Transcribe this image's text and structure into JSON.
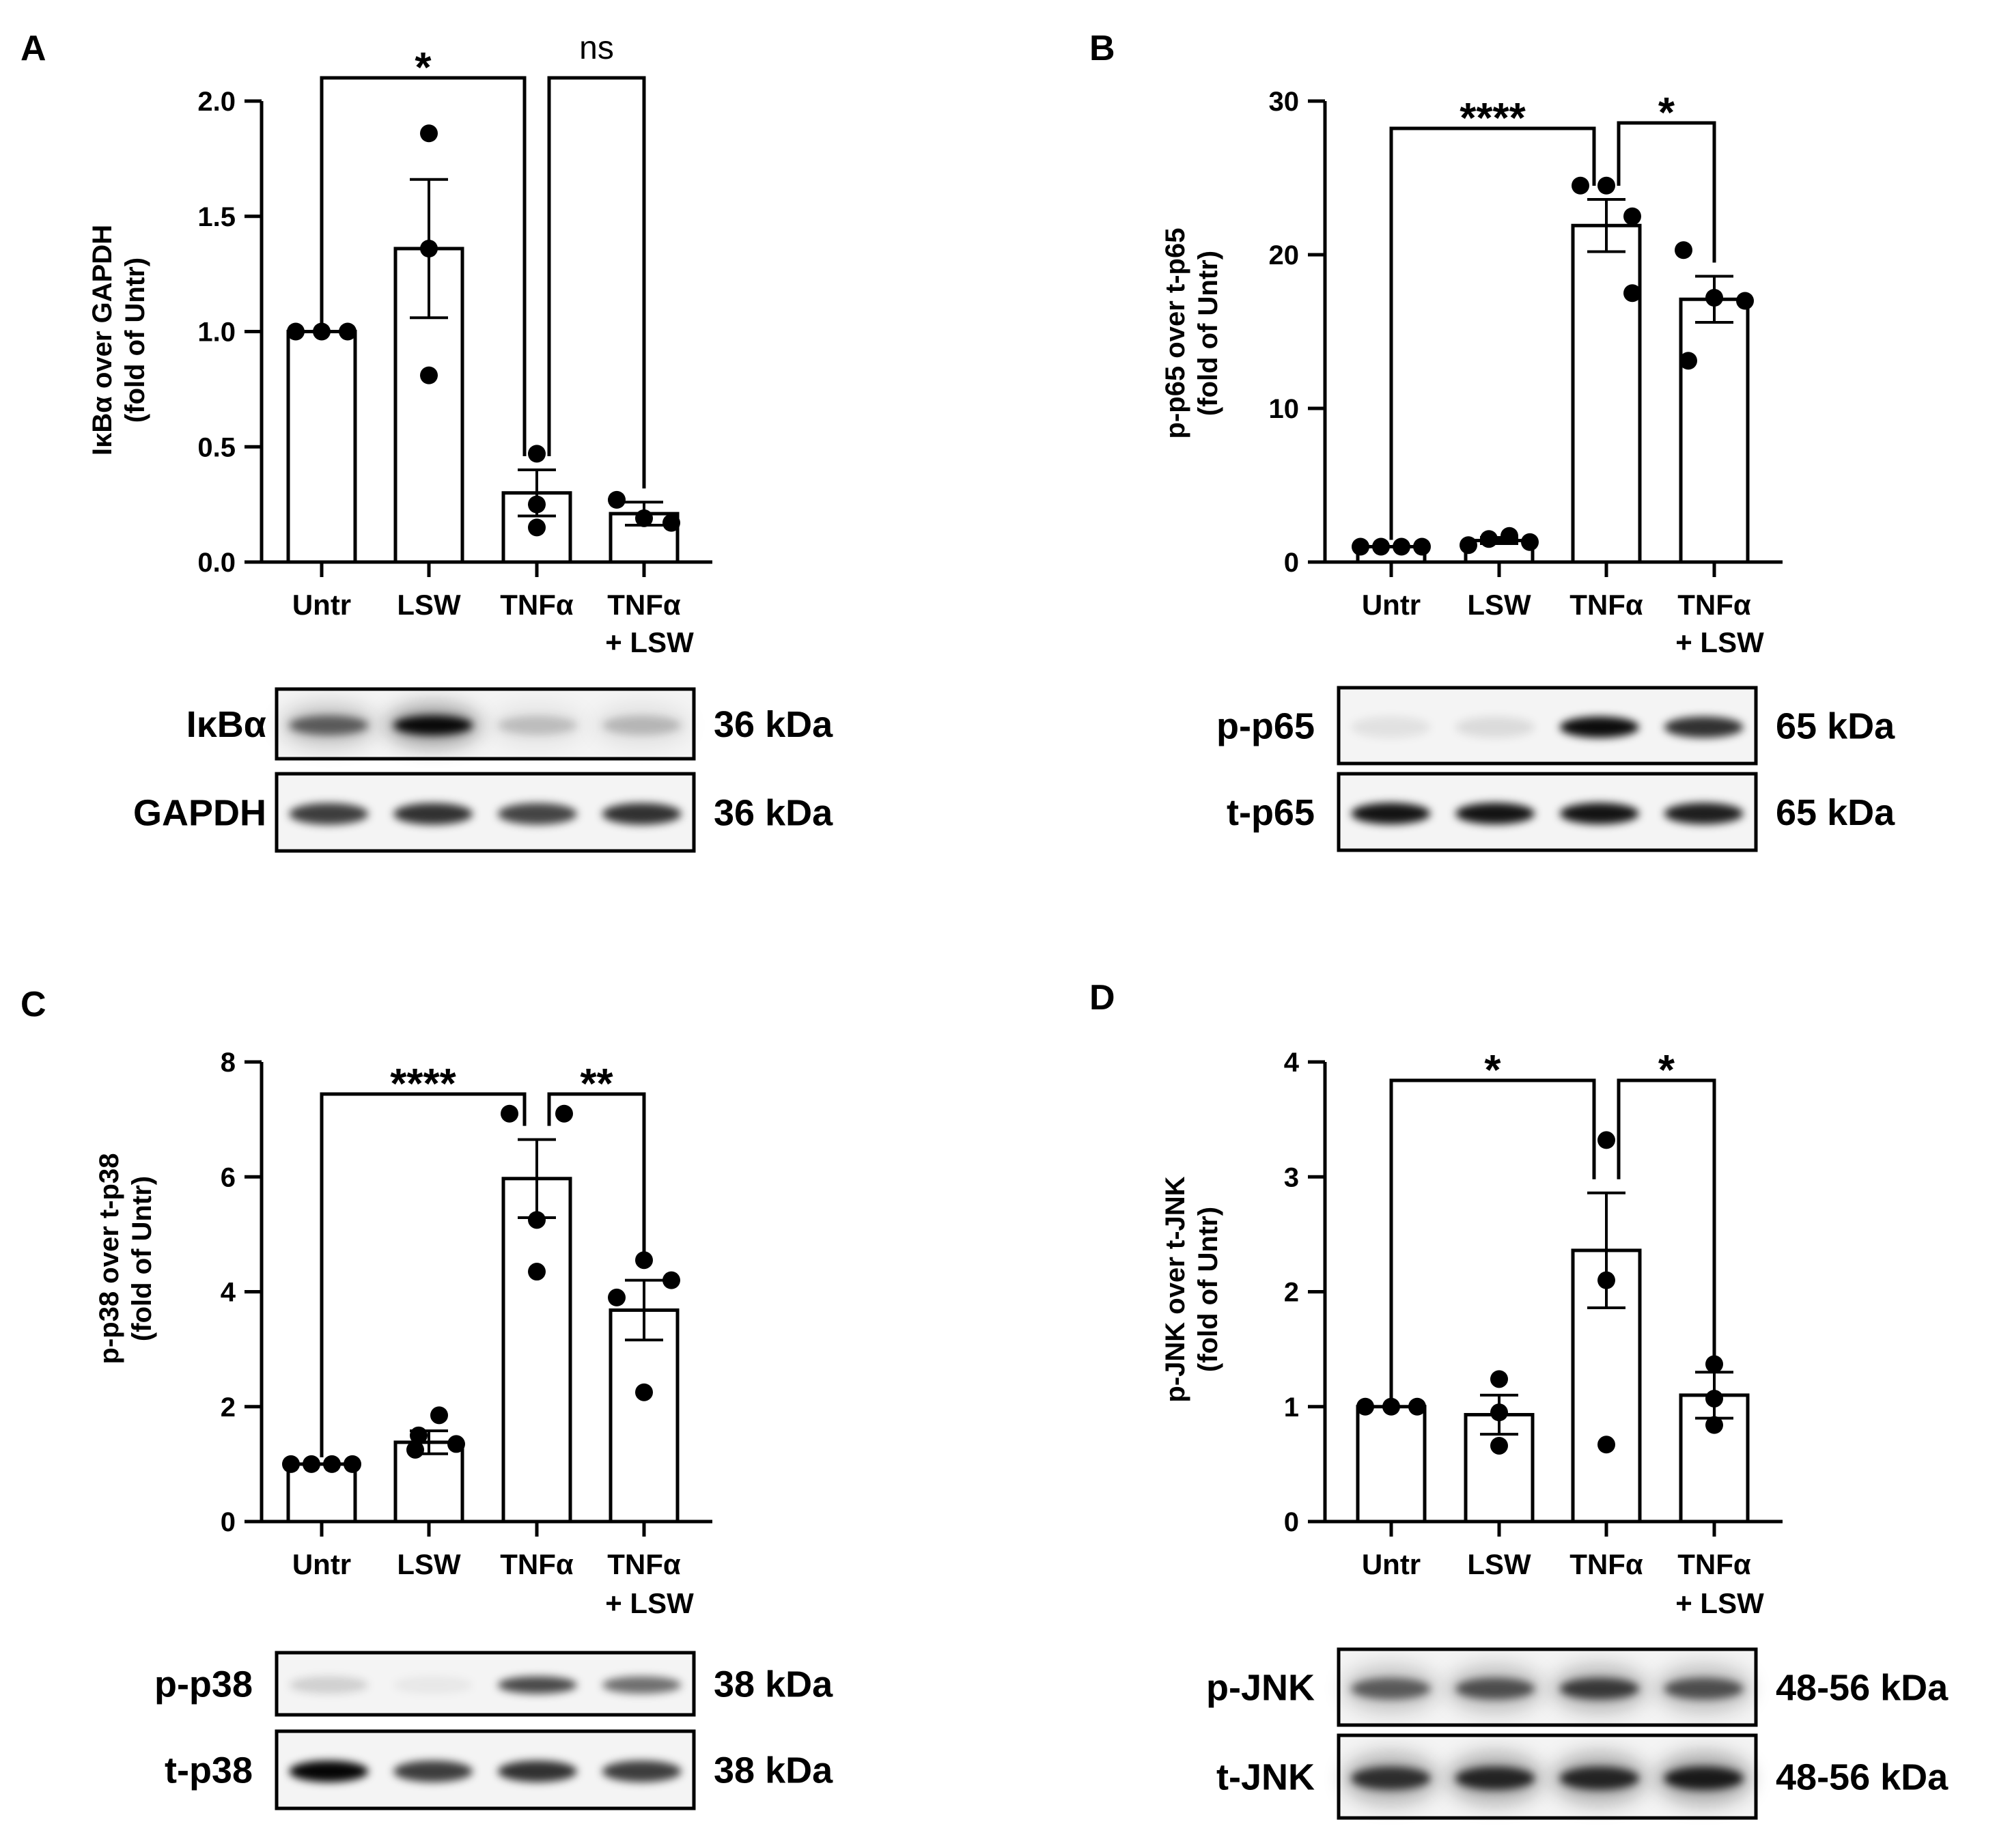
{
  "panels": [
    {
      "letter": "A",
      "ylabel_line1": "IκBα over GAPDH",
      "ylabel_line2": "(fold of Untr)",
      "blots": [
        {
          "label": "IκBα",
          "kda": "36 kDa",
          "intensity": [
            0.55,
            0.95,
            0.18,
            0.2
          ],
          "smear": true
        },
        {
          "label": "GAPDH",
          "kda": "36 kDa",
          "intensity": [
            0.75,
            0.8,
            0.72,
            0.8
          ],
          "smear": false
        }
      ]
    },
    {
      "letter": "B",
      "ylabel_line1": "p-p65 over t-p65",
      "ylabel_line2": "(fold of Untr)",
      "blots": [
        {
          "label": "p-p65",
          "kda": "65 kDa",
          "intensity": [
            0.08,
            0.1,
            0.95,
            0.8
          ],
          "smear": false
        },
        {
          "label": "t-p65",
          "kda": "65 kDa",
          "intensity": [
            0.92,
            0.92,
            0.92,
            0.88
          ],
          "smear": false
        }
      ]
    },
    {
      "letter": "C",
      "ylabel_line1": "p-p38 over t-p38",
      "ylabel_line2": "(fold of Untr)",
      "blots": [
        {
          "label": "p-p38",
          "kda": "38 kDa",
          "intensity": [
            0.15,
            0.05,
            0.7,
            0.55
          ],
          "smear": false
        },
        {
          "label": "t-p38",
          "kda": "38 kDa",
          "intensity": [
            0.98,
            0.75,
            0.8,
            0.75
          ],
          "smear": false
        }
      ]
    },
    {
      "letter": "D",
      "ylabel_line1": "p-JNK over t-JNK",
      "ylabel_line2": "(fold of Untr)",
      "blots": [
        {
          "label": "p-JNK",
          "kda": "48-56 kDa",
          "intensity": [
            0.55,
            0.6,
            0.7,
            0.6
          ],
          "smear": true
        },
        {
          "label": "t-JNK",
          "kda": "48-56 kDa",
          "intensity": [
            0.75,
            0.8,
            0.8,
            0.85
          ],
          "smear": true
        }
      ]
    }
  ],
  "chart_data": [
    {
      "type": "bar",
      "panel": "A",
      "categories": [
        "Untr",
        "LSW",
        "TNFα",
        "TNFα + LSW"
      ],
      "category_lines": [
        [
          "Untr"
        ],
        [
          "LSW"
        ],
        [
          "TNFα"
        ],
        [
          "TNFα",
          "+ LSW"
        ]
      ],
      "values": [
        1.0,
        1.36,
        0.3,
        0.21
      ],
      "sem": [
        0.0,
        0.3,
        0.1,
        0.05
      ],
      "points": [
        [
          1.0,
          1.0,
          1.0
        ],
        [
          1.86,
          1.36,
          0.81
        ],
        [
          0.47,
          0.25,
          0.15
        ],
        [
          0.27,
          0.17,
          0.19
        ]
      ],
      "ylim": [
        0,
        2.0
      ],
      "yticks": [
        0.0,
        0.5,
        1.0,
        1.5,
        2.0
      ],
      "ytick_labels": [
        "0.0",
        "0.5",
        "1.0",
        "1.5",
        "2.0"
      ],
      "ylabel": "IκBα over GAPDH (fold of Untr)",
      "grid": false,
      "brackets": [
        {
          "from": 0,
          "to": 2,
          "label": "*"
        },
        {
          "from": 2,
          "to": 3,
          "label": "ns"
        }
      ]
    },
    {
      "type": "bar",
      "panel": "B",
      "categories": [
        "Untr",
        "LSW",
        "TNFα",
        "TNFα + LSW"
      ],
      "category_lines": [
        [
          "Untr"
        ],
        [
          "LSW"
        ],
        [
          "TNFα"
        ],
        [
          "TNFα",
          "+ LSW"
        ]
      ],
      "values": [
        1.0,
        1.4,
        21.9,
        17.1
      ],
      "sem": [
        0.0,
        0.2,
        1.7,
        1.5
      ],
      "points": [
        [
          1.0,
          1.0,
          1.0,
          1.0
        ],
        [
          1.1,
          1.5,
          1.7,
          1.3
        ],
        [
          24.5,
          22.5,
          24.5,
          17.5
        ],
        [
          20.3,
          17.2,
          13.1,
          17.0
        ]
      ],
      "ylim": [
        0,
        30
      ],
      "yticks": [
        0,
        10,
        20,
        30
      ],
      "ytick_labels": [
        "0",
        "10",
        "20",
        "30"
      ],
      "ylabel": "p-p65 over t-p65 (fold of Untr)",
      "grid": false,
      "brackets": [
        {
          "from": 0,
          "to": 2,
          "label": "****"
        },
        {
          "from": 2,
          "to": 3,
          "label": "*"
        }
      ]
    },
    {
      "type": "bar",
      "panel": "C",
      "categories": [
        "Untr",
        "LSW",
        "TNFα",
        "TNFα + LSW"
      ],
      "category_lines": [
        [
          "Untr"
        ],
        [
          "LSW"
        ],
        [
          "TNFα"
        ],
        [
          "TNFα",
          "+ LSW"
        ]
      ],
      "values": [
        1.0,
        1.38,
        5.97,
        3.68
      ],
      "sem": [
        0.0,
        0.2,
        0.68,
        0.52
      ],
      "points": [
        [
          1.0,
          1.0,
          1.0,
          1.0
        ],
        [
          1.85,
          1.5,
          1.25,
          1.35
        ],
        [
          7.1,
          5.25,
          4.35,
          7.1
        ],
        [
          4.55,
          4.2,
          3.9,
          2.25
        ]
      ],
      "ylim": [
        0,
        8
      ],
      "yticks": [
        0,
        2,
        4,
        6,
        8
      ],
      "ytick_labels": [
        "0",
        "2",
        "4",
        "6",
        "8"
      ],
      "ylabel": "p-p38 over t-p38 (fold of Untr)",
      "grid": false,
      "brackets": [
        {
          "from": 0,
          "to": 2,
          "label": "****"
        },
        {
          "from": 2,
          "to": 3,
          "label": "**"
        }
      ]
    },
    {
      "type": "bar",
      "panel": "D",
      "categories": [
        "Untr",
        "LSW",
        "TNFα",
        "TNFα + LSW"
      ],
      "category_lines": [
        [
          "Untr"
        ],
        [
          "LSW"
        ],
        [
          "TNFα"
        ],
        [
          "TNFα",
          "+ LSW"
        ]
      ],
      "values": [
        1.0,
        0.93,
        2.36,
        1.1
      ],
      "sem": [
        0.0,
        0.17,
        0.5,
        0.2
      ],
      "points": [
        [
          1.0,
          1.0,
          1.0
        ],
        [
          1.24,
          0.95,
          0.66
        ],
        [
          3.32,
          2.1,
          0.67
        ],
        [
          1.37,
          1.07,
          0.84
        ]
      ],
      "ylim": [
        0,
        4
      ],
      "yticks": [
        0,
        1,
        2,
        3,
        4
      ],
      "ytick_labels": [
        "0",
        "1",
        "2",
        "3",
        "4"
      ],
      "ylabel": "p-JNK over t-JNK (fold of Untr)",
      "grid": false,
      "brackets": [
        {
          "from": 0,
          "to": 2,
          "label": "*"
        },
        {
          "from": 2,
          "to": 3,
          "label": "*"
        }
      ]
    }
  ]
}
